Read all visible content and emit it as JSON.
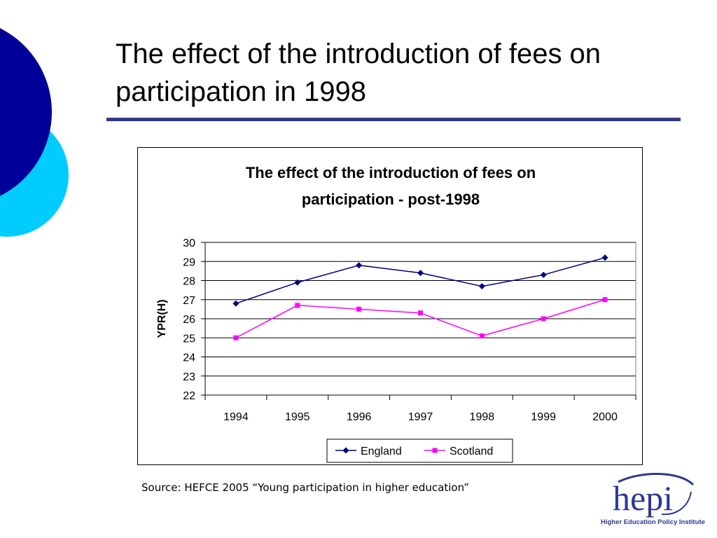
{
  "slide": {
    "title": "The effect of the introduction of fees on participation in 1998",
    "source": "Source: HEFCE 2005 “Young participation in higher education”"
  },
  "logo": {
    "wordmark": "hepi",
    "name": "Higher Education Policy Institute"
  },
  "colors": {
    "title_rule": "#2b3990",
    "deco_dark": "#000099",
    "deco_light": "#00ccff",
    "england": "#000080",
    "scotland": "#ff00ff"
  },
  "chart_data": {
    "type": "line",
    "title_line1": "The effect of the introduction of fees on",
    "title_line2": "participation - post-1998",
    "title": "The effect of the introduction of fees on participation - post-1998",
    "xlabel": "",
    "ylabel": "YPR(H)",
    "categories": [
      "1994",
      "1995",
      "1996",
      "1997",
      "1998",
      "1999",
      "2000"
    ],
    "ylim": [
      22,
      30
    ],
    "yticks": [
      "22",
      "23",
      "24",
      "25",
      "26",
      "27",
      "28",
      "29",
      "30"
    ],
    "grid": "horizontal",
    "legend": "bottom",
    "series": [
      {
        "name": "England",
        "values": [
          26.8,
          27.9,
          28.8,
          28.4,
          27.7,
          28.3,
          29.2
        ],
        "color": "#000080",
        "marker": "diamond"
      },
      {
        "name": "Scotland",
        "values": [
          25.0,
          26.7,
          26.5,
          26.3,
          25.1,
          26.0,
          27.0
        ],
        "color": "#ff00ff",
        "marker": "square"
      }
    ]
  }
}
